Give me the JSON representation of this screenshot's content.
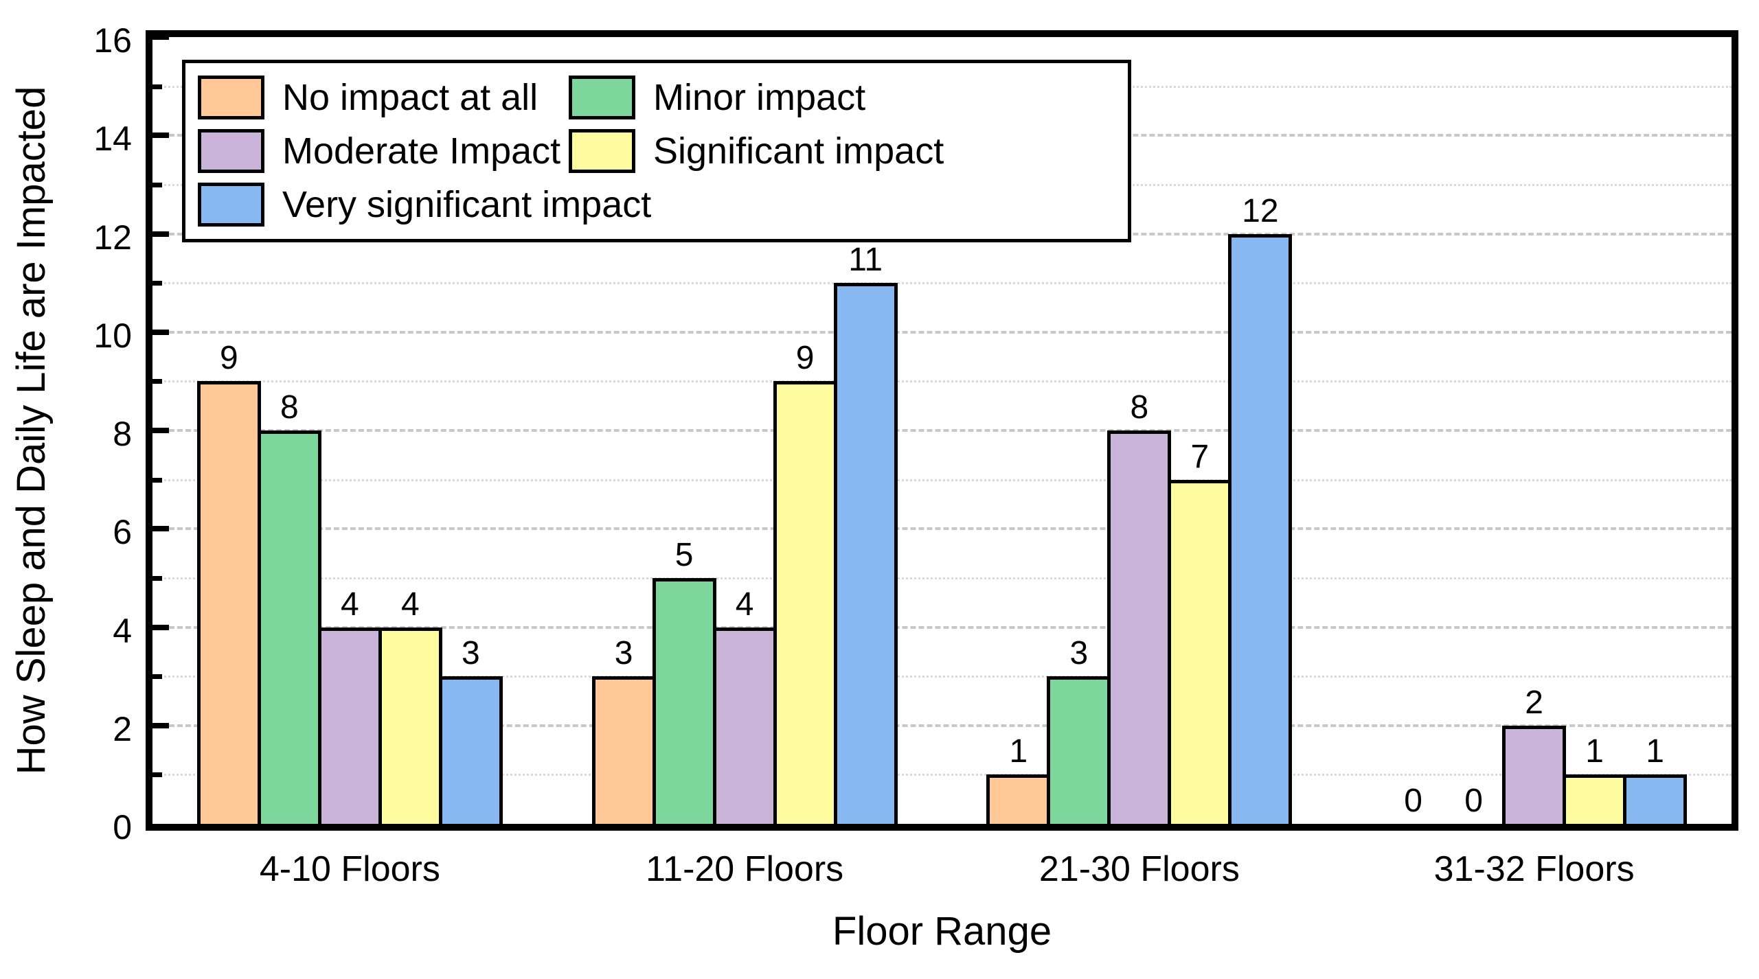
{
  "chart_data": {
    "type": "bar",
    "title": "",
    "categories": [
      "4-10 Floors",
      "11-20 Floors",
      "21-30 Floors",
      "31-32 Floors"
    ],
    "series": [
      {
        "name": "No impact at all",
        "color": "#FFC896",
        "values": [
          9,
          3,
          1,
          0
        ]
      },
      {
        "name": "Minor impact",
        "color": "#7DD69B",
        "values": [
          8,
          5,
          3,
          0
        ]
      },
      {
        "name": "Moderate Impact",
        "color": "#CBB4D9",
        "values": [
          4,
          4,
          8,
          2
        ]
      },
      {
        "name": "Significant impact",
        "color": "#FFFCA0",
        "values": [
          4,
          9,
          7,
          1
        ]
      },
      {
        "name": "Very significant impact",
        "color": "#87B8F1",
        "values": [
          3,
          11,
          12,
          1
        ]
      }
    ],
    "xlabel": "Floor Range",
    "ylabel": "How Sleep and Daily Life are Impacted",
    "ylim": [
      0,
      16
    ],
    "ytick_step": 2,
    "ytick_labels": [
      "0",
      "2",
      "4",
      "6",
      "8",
      "10",
      "12",
      "14",
      "16"
    ],
    "bar_value_labels": true,
    "grid": {
      "major_style": "dashed",
      "minor_style": "dotted",
      "major_color": "#c8c8c8",
      "minor_color": "#d9d9d9"
    },
    "legend_position": "top-left",
    "axis_color": "#000000"
  }
}
